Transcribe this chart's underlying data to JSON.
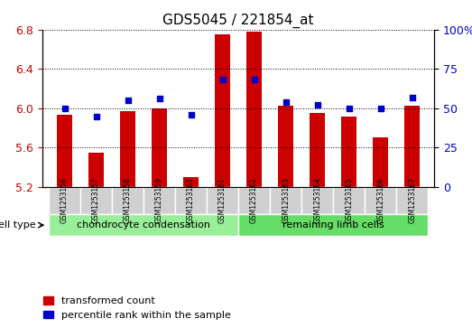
{
  "title": "GDS5045 / 221854_at",
  "samples": [
    "GSM1253156",
    "GSM1253157",
    "GSM1253158",
    "GSM1253159",
    "GSM1253160",
    "GSM1253161",
    "GSM1253162",
    "GSM1253163",
    "GSM1253164",
    "GSM1253165",
    "GSM1253166",
    "GSM1253167"
  ],
  "transformed_count": [
    5.93,
    5.55,
    5.97,
    6.0,
    5.3,
    6.75,
    6.78,
    6.03,
    5.95,
    5.92,
    5.7,
    6.03
  ],
  "percentile_rank": [
    50,
    45,
    55,
    56,
    46,
    68,
    68,
    54,
    52,
    50,
    50,
    57
  ],
  "ylim_left": [
    5.2,
    6.8
  ],
  "ylim_right": [
    0,
    100
  ],
  "yticks_left": [
    5.2,
    5.6,
    6.0,
    6.4,
    6.8
  ],
  "yticks_right": [
    0,
    25,
    50,
    75,
    100
  ],
  "bar_color": "#cc0000",
  "dot_color": "#0000cc",
  "groups": [
    {
      "label": "chondrocyte condensation",
      "start": 0,
      "end": 5,
      "color": "#99ee99"
    },
    {
      "label": "remaining limb cells",
      "start": 6,
      "end": 11,
      "color": "#66dd66"
    }
  ],
  "group_row_label": "cell type",
  "legend_items": [
    {
      "label": "transformed count",
      "color": "#cc0000"
    },
    {
      "label": "percentile rank within the sample",
      "color": "#0000cc"
    }
  ],
  "background_color": "#ffffff",
  "plot_bg_color": "#ffffff",
  "grid_color": "#000000",
  "tick_label_color_left": "#cc0000",
  "tick_label_color_right": "#0000cc"
}
